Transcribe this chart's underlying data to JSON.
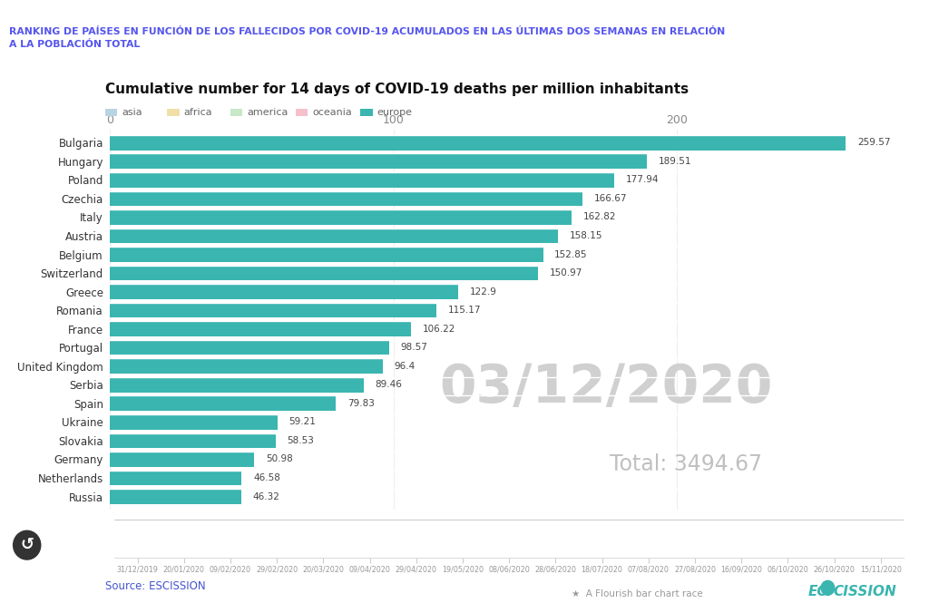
{
  "title_top": "RANKING DE PAÍSES EN FUNCIÓN DE LOS FALLECIDOS POR COVID-19 ACUMULADOS EN LAS ÚLTIMAS DOS SEMANAS EN RELACIÓN\nA LA POBLACIÓN TOTAL",
  "title_main": "Cumulative number for 14 days of COVID-19 deaths per million inhabitants",
  "legend_items": [
    "asia",
    "africa",
    "america",
    "oceania",
    "europe"
  ],
  "legend_colors": [
    "#b8d4e3",
    "#f0e0a8",
    "#c8e8c8",
    "#f5c0cc",
    "#3ab5b0"
  ],
  "countries": [
    "Bulgaria",
    "Hungary",
    "Poland",
    "Czechia",
    "Italy",
    "Austria",
    "Belgium",
    "Switzerland",
    "Greece",
    "Romania",
    "France",
    "Portugal",
    "United Kingdom",
    "Serbia",
    "Spain",
    "Ukraine",
    "Slovakia",
    "Germany",
    "Netherlands",
    "Russia"
  ],
  "values": [
    259.57,
    189.51,
    177.94,
    166.67,
    162.82,
    158.15,
    152.85,
    150.97,
    122.9,
    115.17,
    106.22,
    98.57,
    96.4,
    89.46,
    79.83,
    59.21,
    58.53,
    50.98,
    46.58,
    46.32
  ],
  "bar_color": "#3ab5b0",
  "date_watermark": "03/12/2020",
  "total_watermark": "Total: 3494.67",
  "source_text": "Source: ESCISSION",
  "xlim_max": 280,
  "xticks": [
    0,
    100,
    200
  ],
  "background_color": "#ffffff",
  "bar_height": 0.8,
  "timeline_dates": [
    "31/12/2019",
    "20/01/2020",
    "09/02/2020",
    "29/02/2020",
    "20/03/2020",
    "09/04/2020",
    "29/04/2020",
    "19/05/2020",
    "08/06/2020",
    "28/06/2020",
    "18/07/2020",
    "07/08/2020",
    "27/08/2020",
    "16/09/2020",
    "06/10/2020",
    "26/10/2020",
    "15/11/2020"
  ],
  "top_title_color": "#5555ee",
  "value_color": "#444444",
  "country_color": "#333333",
  "watermark_color": "#d0d0d0",
  "watermark_total_color": "#c0c0c0",
  "grid_color": "#eeeeee"
}
